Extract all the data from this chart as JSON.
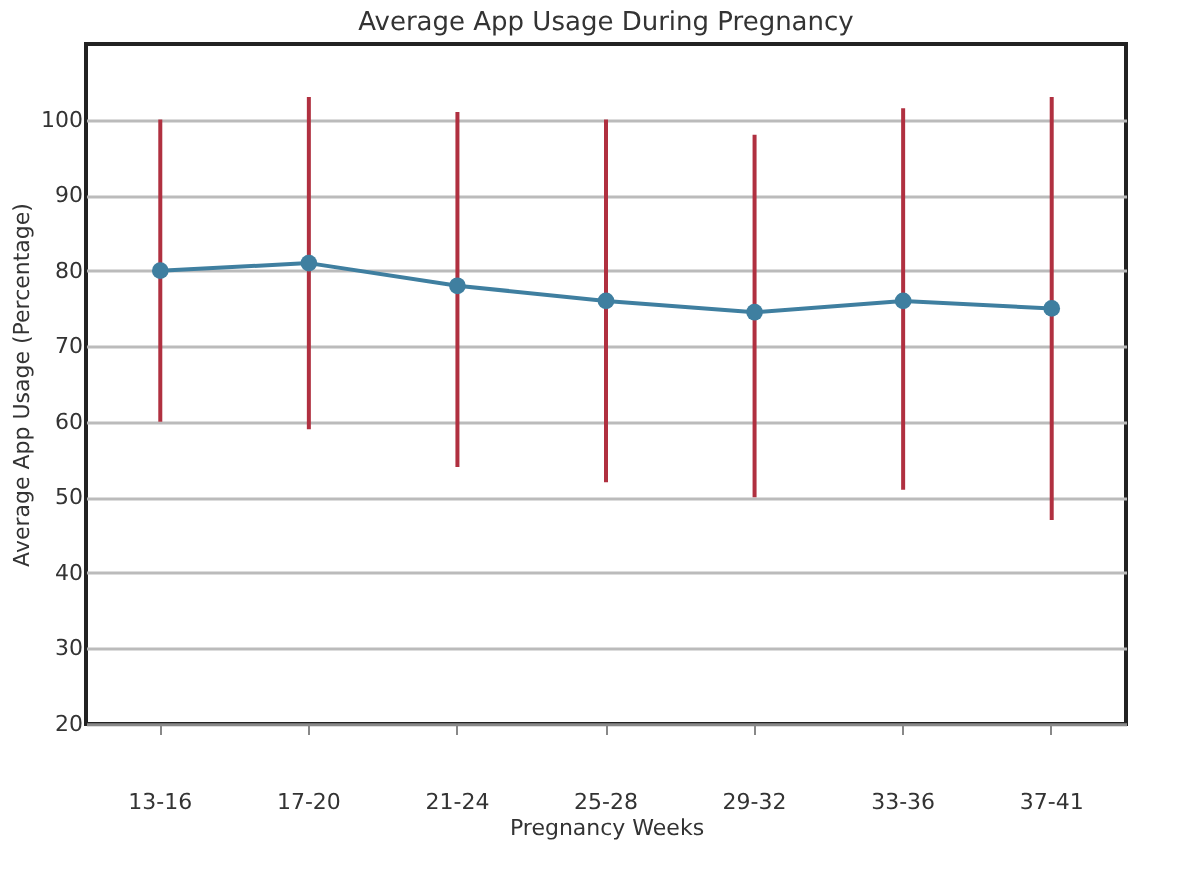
{
  "chart_data": {
    "type": "line",
    "title": "Average App Usage During Pregnancy",
    "xlabel": "Pregnancy Weeks",
    "ylabel": "Average App Usage (Percentage)",
    "categories": [
      "13-16",
      "17-20",
      "21-24",
      "25-28",
      "29-32",
      "33-36",
      "37-41"
    ],
    "series": [
      {
        "color": "#3f7fa0",
        "values": [
          80,
          81,
          78,
          76,
          74.5,
          76,
          75
        ],
        "errors": [
          [
            60,
            100
          ],
          [
            59,
            103
          ],
          [
            54,
            101
          ],
          [
            52,
            100
          ],
          [
            50,
            98
          ],
          [
            51,
            101.5
          ],
          [
            47,
            103
          ]
        ]
      }
    ],
    "ylim": [
      20,
      110
    ],
    "yticks": [
      20,
      30,
      40,
      50,
      60,
      70,
      80,
      90,
      100
    ],
    "grid": "y",
    "marker": "circle",
    "line_style": "solid"
  }
}
